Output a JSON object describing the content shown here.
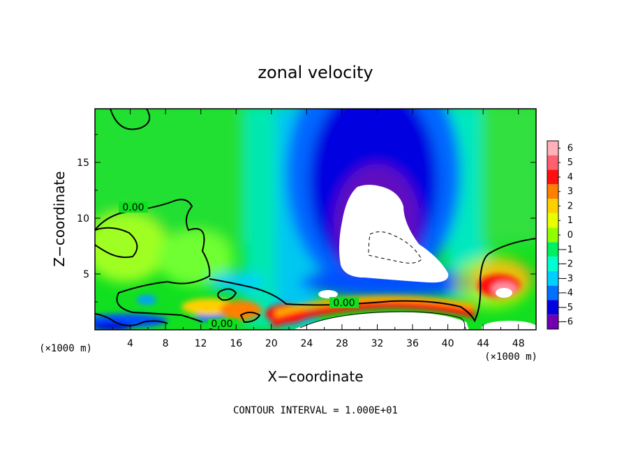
{
  "chart_data": {
    "type": "heatmap",
    "title": "zonal velocity",
    "xlabel": "X−coordinate",
    "ylabel": "Z−coordinate",
    "x_unit": "(×1000 m)",
    "y_unit": "(×1000 m)",
    "xlim": [
      0,
      50
    ],
    "ylim": [
      0,
      19.8
    ],
    "x_ticks": [
      4,
      8,
      12,
      16,
      20,
      24,
      28,
      32,
      36,
      40,
      44,
      48
    ],
    "y_ticks": [
      5,
      10,
      15
    ],
    "colorbar": {
      "levels": [
        6,
        5,
        4,
        3,
        2,
        1,
        0,
        -1,
        -2,
        -3,
        -4,
        -5,
        -6
      ],
      "labels": [
        "6",
        "5",
        "4",
        "3",
        "2",
        "1",
        "0",
        "−1",
        "−2",
        "−3",
        "−4",
        "−5",
        "−6"
      ],
      "colors": [
        "#ffb0b8",
        "#ff6070",
        "#ff1010",
        "#ff8000",
        "#ffd000",
        "#e8ff00",
        "#90ff00",
        "#00f060",
        "#00ffd0",
        "#00d0ff",
        "#0070ff",
        "#0000e0",
        "#7000b0"
      ],
      "extend_above": "#ffffff",
      "extend_below": "#ffffff"
    },
    "contour_labels": [
      {
        "text": "0.00",
        "x": 4.4,
        "z": 11.0
      },
      {
        "text": "0.00",
        "x": 28.0,
        "z": 2.4
      },
      {
        "text": "0.00",
        "x": 14.2,
        "z": 0.4
      }
    ],
    "footer": "CONTOUR INTERVAL = 1.000E+01"
  },
  "colors": {
    "background": "#ffffff",
    "frame": "#000000"
  }
}
